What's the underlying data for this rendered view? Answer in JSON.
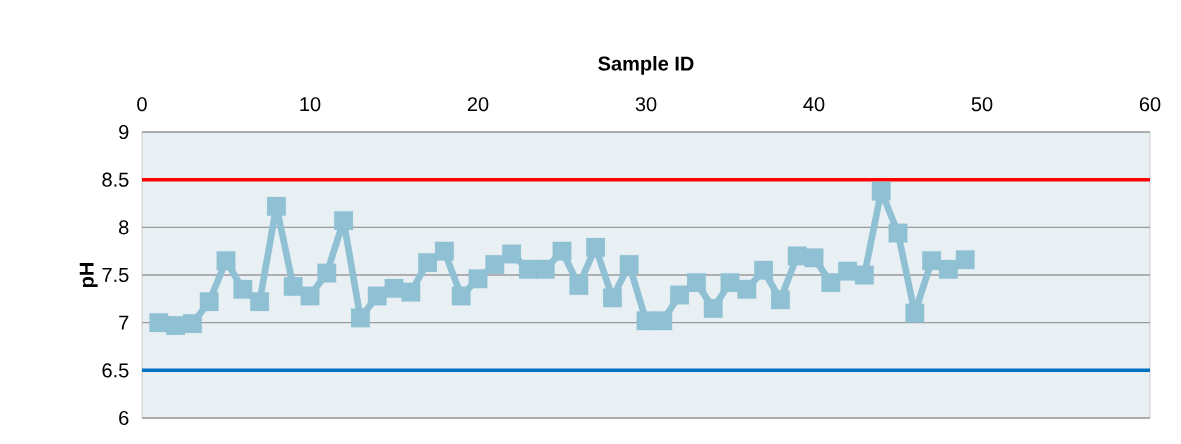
{
  "chart_data": {
    "type": "line",
    "xlabel": "Sample ID",
    "ylabel": "pH",
    "x": [
      1,
      2,
      3,
      4,
      5,
      6,
      7,
      8,
      9,
      10,
      11,
      12,
      13,
      14,
      15,
      16,
      17,
      18,
      19,
      20,
      21,
      22,
      23,
      24,
      25,
      26,
      27,
      28,
      29,
      30,
      31,
      32,
      33,
      34,
      35,
      36,
      37,
      38,
      39,
      40,
      41,
      42,
      43,
      44,
      45,
      46,
      47,
      48,
      49
    ],
    "series": [
      {
        "color": "#8fc0d3",
        "values": [
          7.0,
          6.97,
          6.99,
          7.22,
          7.65,
          7.35,
          7.22,
          8.22,
          7.38,
          7.28,
          7.52,
          8.07,
          7.05,
          7.28,
          7.36,
          7.32,
          7.63,
          7.75,
          7.28,
          7.46,
          7.61,
          7.72,
          7.56,
          7.56,
          7.75,
          7.39,
          7.79,
          7.26,
          7.61,
          7.02,
          7.02,
          7.29,
          7.42,
          7.15,
          7.42,
          7.35,
          7.55,
          7.24,
          7.7,
          7.68,
          7.42,
          7.54,
          7.5,
          8.38,
          7.94,
          7.1,
          7.65,
          7.56,
          7.66
        ]
      }
    ],
    "xlim": [
      0,
      60
    ],
    "ylim": [
      6,
      9
    ],
    "xticks": [
      0,
      10,
      20,
      30,
      40,
      50,
      60
    ],
    "yticks": [
      6,
      {
        "value": 6.5,
        "label": "6.5"
      },
      7,
      {
        "value": 7.5,
        "label": "7.5"
      },
      8,
      {
        "value": 8.5,
        "label": "8.5"
      },
      9
    ],
    "ref_lines": [
      {
        "axis": "y",
        "value": 8.5,
        "color": "#ff0000"
      },
      {
        "axis": "y",
        "value": 6.5,
        "color": "#0070c0"
      }
    ],
    "grid": "y",
    "marker": "square",
    "line_style": "solid"
  }
}
